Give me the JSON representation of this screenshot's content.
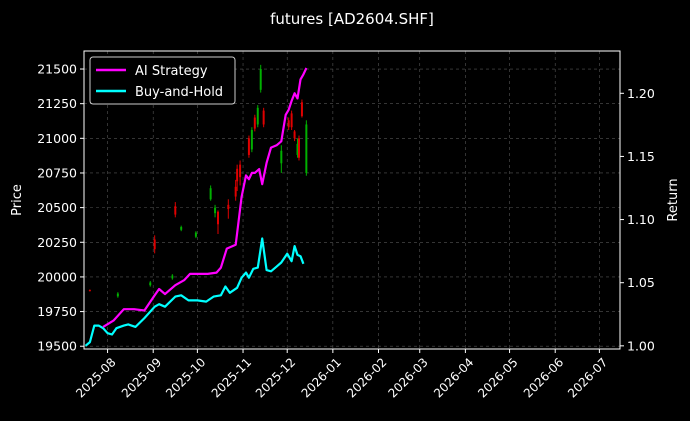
{
  "chart_data": {
    "type": "line",
    "title": "futures [AD2604.SHF]",
    "xlabel": "",
    "ylabel": "Price",
    "y2label": "Return",
    "xlim": [
      "2025-07-16",
      "2026-07-15"
    ],
    "ylim": [
      19480,
      21630
    ],
    "y2lim": [
      0.9975,
      1.2335
    ],
    "x_ticks": [
      "2025-08-01",
      "2025-09-01",
      "2025-10-01",
      "2025-11-01",
      "2025-12-01",
      "2026-01-01",
      "2026-02-01",
      "2026-03-01",
      "2026-04-01",
      "2026-05-01",
      "2026-06-01",
      "2026-07-01"
    ],
    "x_tick_labels": [
      "2025-08",
      "2025-09",
      "2025-10",
      "2025-11",
      "2025-12",
      "2026-01",
      "2026-02",
      "2026-03",
      "2026-04",
      "2026-05",
      "2026-06",
      "2026-07"
    ],
    "y_ticks": [
      19500,
      19750,
      20000,
      20250,
      20500,
      20750,
      21000,
      21250,
      21500
    ],
    "y2_ticks": [
      1.0,
      1.05,
      1.1,
      1.15,
      1.2
    ],
    "y2_tick_labels": [
      "1.00",
      "1.05",
      "1.10",
      "1.15",
      "1.20"
    ],
    "grid": true,
    "legend_position": "top-left",
    "series": [
      {
        "name": "AI Strategy",
        "axis": "right",
        "color": "#ff00ff",
        "points": [
          [
            "2025-07-29",
            1.015
          ],
          [
            "2025-08-05",
            1.02
          ],
          [
            "2025-08-12",
            1.029
          ],
          [
            "2025-08-19",
            1.029
          ],
          [
            "2025-08-26",
            1.028
          ],
          [
            "2025-09-02",
            1.04
          ],
          [
            "2025-09-05",
            1.045
          ],
          [
            "2025-09-09",
            1.041
          ],
          [
            "2025-09-16",
            1.048
          ],
          [
            "2025-09-22",
            1.052
          ],
          [
            "2025-09-26",
            1.057
          ],
          [
            "2025-10-01",
            1.057
          ],
          [
            "2025-10-08",
            1.057
          ],
          [
            "2025-10-14",
            1.058
          ],
          [
            "2025-10-17",
            1.062
          ],
          [
            "2025-10-21",
            1.077
          ],
          [
            "2025-10-27",
            1.08
          ],
          [
            "2025-10-31",
            1.118
          ],
          [
            "2025-11-03",
            1.135
          ],
          [
            "2025-11-05",
            1.132
          ],
          [
            "2025-11-07",
            1.137
          ],
          [
            "2025-11-09",
            1.137
          ],
          [
            "2025-11-12",
            1.14
          ],
          [
            "2025-11-14",
            1.128
          ],
          [
            "2025-11-17",
            1.145
          ],
          [
            "2025-11-20",
            1.157
          ],
          [
            "2025-11-24",
            1.159
          ],
          [
            "2025-11-27",
            1.162
          ],
          [
            "2025-11-30",
            1.183
          ],
          [
            "2025-12-02",
            1.187
          ],
          [
            "2025-12-04",
            1.194
          ],
          [
            "2025-12-06",
            1.2
          ],
          [
            "2025-12-08",
            1.196
          ],
          [
            "2025-12-10",
            1.211
          ],
          [
            "2025-12-12",
            1.215
          ],
          [
            "2025-12-14",
            1.22
          ]
        ]
      },
      {
        "name": "Buy-and-Hold",
        "axis": "right",
        "color": "#00ffff",
        "points": [
          [
            "2025-07-17",
            1.0
          ],
          [
            "2025-07-20",
            1.003
          ],
          [
            "2025-07-23",
            1.016
          ],
          [
            "2025-07-26",
            1.016
          ],
          [
            "2025-07-29",
            1.014
          ],
          [
            "2025-08-01",
            1.01
          ],
          [
            "2025-08-04",
            1.009
          ],
          [
            "2025-08-07",
            1.014
          ],
          [
            "2025-08-12",
            1.016
          ],
          [
            "2025-08-15",
            1.017
          ],
          [
            "2025-08-20",
            1.015
          ],
          [
            "2025-08-26",
            1.022
          ],
          [
            "2025-09-02",
            1.031
          ],
          [
            "2025-09-05",
            1.033
          ],
          [
            "2025-09-09",
            1.031
          ],
          [
            "2025-09-16",
            1.039
          ],
          [
            "2025-09-20",
            1.04
          ],
          [
            "2025-09-25",
            1.036
          ],
          [
            "2025-10-01",
            1.036
          ],
          [
            "2025-10-07",
            1.035
          ],
          [
            "2025-10-12",
            1.039
          ],
          [
            "2025-10-17",
            1.04
          ],
          [
            "2025-10-20",
            1.047
          ],
          [
            "2025-10-23",
            1.042
          ],
          [
            "2025-10-28",
            1.046
          ],
          [
            "2025-10-31",
            1.054
          ],
          [
            "2025-11-03",
            1.058
          ],
          [
            "2025-11-05",
            1.054
          ],
          [
            "2025-11-08",
            1.061
          ],
          [
            "2025-11-11",
            1.062
          ],
          [
            "2025-11-14",
            1.085
          ],
          [
            "2025-11-17",
            1.06
          ],
          [
            "2025-11-20",
            1.059
          ],
          [
            "2025-11-24",
            1.063
          ],
          [
            "2025-11-27",
            1.066
          ],
          [
            "2025-12-01",
            1.073
          ],
          [
            "2025-12-04",
            1.067
          ],
          [
            "2025-12-06",
            1.079
          ],
          [
            "2025-12-08",
            1.072
          ],
          [
            "2025-12-10",
            1.071
          ],
          [
            "2025-12-12",
            1.065
          ]
        ]
      }
    ],
    "candlesticks": {
      "axis": "left",
      "up_color": "#00b000",
      "down_color": "#e00000",
      "bars": [
        {
          "x": "2025-07-20",
          "open": 19905,
          "close": 19900,
          "high": 19910,
          "low": 19895
        },
        {
          "x": "2025-08-08",
          "open": 19860,
          "close": 19880,
          "high": 19890,
          "low": 19850
        },
        {
          "x": "2025-08-30",
          "open": 19940,
          "close": 19960,
          "high": 19970,
          "low": 19930
        },
        {
          "x": "2025-09-02",
          "open": 20270,
          "close": 20200,
          "high": 20300,
          "low": 20170
        },
        {
          "x": "2025-09-14",
          "open": 19990,
          "close": 20010,
          "high": 20020,
          "low": 19980
        },
        {
          "x": "2025-09-16",
          "open": 20510,
          "close": 20450,
          "high": 20540,
          "low": 20430
        },
        {
          "x": "2025-09-20",
          "open": 20340,
          "close": 20360,
          "high": 20370,
          "low": 20330
        },
        {
          "x": "2025-09-30",
          "open": 20290,
          "close": 20320,
          "high": 20330,
          "low": 20280
        },
        {
          "x": "2025-10-10",
          "open": 20560,
          "close": 20640,
          "high": 20660,
          "low": 20550
        },
        {
          "x": "2025-10-13",
          "open": 20460,
          "close": 20500,
          "high": 20520,
          "low": 20430
        },
        {
          "x": "2025-10-15",
          "open": 20470,
          "close": 20380,
          "high": 20480,
          "low": 20310
        },
        {
          "x": "2025-10-22",
          "open": 20520,
          "close": 20490,
          "high": 20560,
          "low": 20420
        },
        {
          "x": "2025-10-27",
          "open": 20650,
          "close": 20580,
          "high": 20700,
          "low": 20550
        },
        {
          "x": "2025-10-28",
          "open": 20780,
          "close": 20690,
          "high": 20810,
          "low": 20620
        },
        {
          "x": "2025-10-30",
          "open": 20810,
          "close": 20720,
          "high": 20840,
          "low": 20660
        },
        {
          "x": "2025-11-05",
          "open": 21000,
          "close": 20880,
          "high": 21020,
          "low": 20860
        },
        {
          "x": "2025-11-07",
          "open": 20920,
          "close": 21060,
          "high": 21080,
          "low": 20900
        },
        {
          "x": "2025-11-09",
          "open": 21150,
          "close": 21070,
          "high": 21170,
          "low": 21050
        },
        {
          "x": "2025-11-11",
          "open": 21100,
          "close": 21220,
          "high": 21240,
          "low": 21080
        },
        {
          "x": "2025-11-13",
          "open": 21350,
          "close": 21500,
          "high": 21530,
          "low": 21330
        },
        {
          "x": "2025-11-15",
          "open": 21200,
          "close": 21100,
          "high": 21220,
          "low": 21080
        },
        {
          "x": "2025-11-27",
          "open": 20820,
          "close": 20910,
          "high": 20950,
          "low": 20750
        },
        {
          "x": "2025-12-02",
          "open": 21130,
          "close": 21080,
          "high": 21150,
          "low": 21060
        },
        {
          "x": "2025-12-04",
          "open": 21180,
          "close": 21080,
          "high": 21200,
          "low": 21060
        },
        {
          "x": "2025-12-06",
          "open": 21050,
          "close": 21000,
          "high": 21060,
          "low": 20980
        },
        {
          "x": "2025-12-08",
          "open": 20880,
          "close": 20960,
          "high": 21000,
          "low": 20860
        },
        {
          "x": "2025-12-09",
          "open": 21000,
          "close": 20860,
          "high": 21020,
          "low": 20840
        },
        {
          "x": "2025-12-11",
          "open": 21260,
          "close": 21160,
          "high": 21280,
          "low": 21150
        },
        {
          "x": "2025-12-14",
          "open": 20750,
          "close": 21100,
          "high": 21130,
          "low": 20730
        }
      ]
    }
  }
}
